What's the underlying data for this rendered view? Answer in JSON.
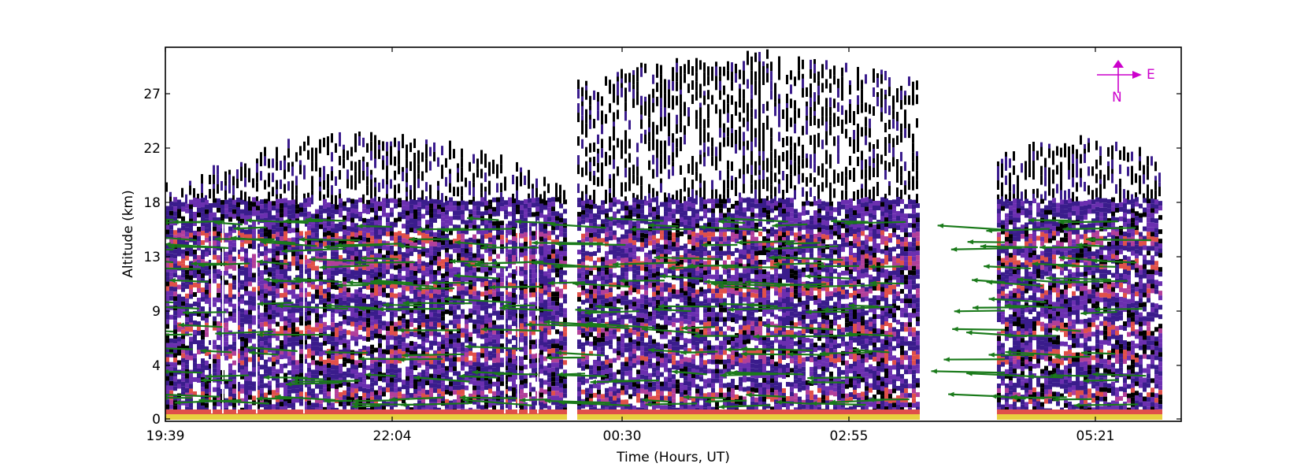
{
  "chart_data": {
    "type": "heatmap",
    "title": "",
    "xlabel": "Time (Hours, UT)",
    "ylabel": "Altitude (km)",
    "x_ticks": [
      "19:39",
      "22:04",
      "00:30",
      "02:55",
      "05:21"
    ],
    "y_ticks": [
      "0",
      "4",
      "9",
      "13",
      "18",
      "22",
      "27"
    ],
    "ylim": [
      0,
      30
    ],
    "xlim_hours": [
      0,
      10.3
    ],
    "data_segments_hours": [
      [
        0,
        4.2
      ],
      [
        4.35,
        8.3
      ],
      [
        9.35,
        11.05
      ]
    ],
    "colormap": [
      "#000000",
      "#3a1c8c",
      "#6b2fb0",
      "#b23f9a",
      "#e0504a",
      "#f08a30",
      "#e8d040"
    ],
    "wind_vector_color": "#1a7a1a",
    "grid": false,
    "legend": "none",
    "compass": {
      "east_label": "E",
      "north_label": "N",
      "color": "#cc00cc"
    }
  }
}
